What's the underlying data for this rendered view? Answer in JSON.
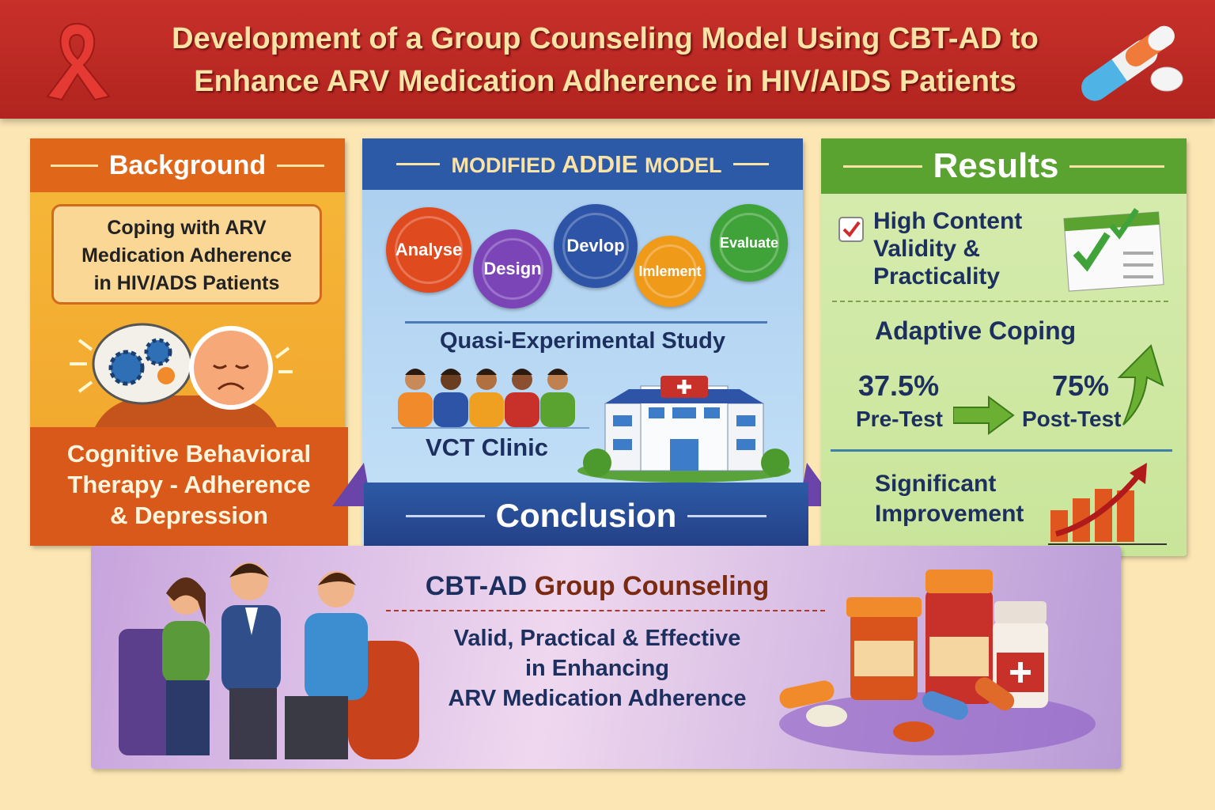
{
  "header": {
    "title_line1": "Development of a Group Counseling Model Using CBT-AD to",
    "title_line2": "Enhance ARV Medication Adherence in HIV/AIDS Patients",
    "left_icon": "awareness-ribbon-icon",
    "right_icon": "pills-icon"
  },
  "background": {
    "heading": "Background",
    "box_line1": "Coping with ARV",
    "box_line2": "Medication Adherence",
    "box_line3": "in HIV/ADS Patients",
    "bottom_line1": "Cognitive Behavioral",
    "bottom_line2": "Therapy - Adherence",
    "bottom_line3": "& Depression",
    "illustration": "brain-gears-and-sad-face-icon",
    "color": "#e0671a"
  },
  "addie": {
    "heading_prefix": "MODIFIED",
    "heading_main": "ADDIE",
    "heading_suffix": "MODEL",
    "gears": [
      {
        "label": "Analyse",
        "color": "#e04a1f"
      },
      {
        "label": "Design",
        "color": "#7b45b8"
      },
      {
        "label": "Devlop",
        "color": "#2e54a8"
      },
      {
        "label": "Imlement",
        "color": "#f09a1a"
      },
      {
        "label": "Evaluate",
        "color": "#3fa33a"
      }
    ],
    "study": "Quasi-Experimental Study",
    "clinic": "VCT Clinic",
    "conclusion": "Conclusion",
    "color": "#2d5aa6"
  },
  "results": {
    "heading": "Results",
    "validity_line1": "High Content",
    "validity_line2": "Validity &",
    "validity_line3": "Practicality",
    "coping_title": "Adaptive Coping",
    "pre_value": "37.5%",
    "pre_label": "Pre-Test",
    "post_value": "75%",
    "post_label": "Post-Test",
    "improvement_line1": "Significant",
    "improvement_line2": "Improvement",
    "color": "#5aa330"
  },
  "conclusion_panel": {
    "title_part1": "CBT-AD",
    "title_part2": "Group Counseling",
    "line1": "Valid, Practical & Effective",
    "line2": "in Enhancing",
    "line3": "ARV Medication Adherence",
    "illustration_left": "group-counseling-people",
    "illustration_right": "medicine-bottles-and-pills"
  }
}
